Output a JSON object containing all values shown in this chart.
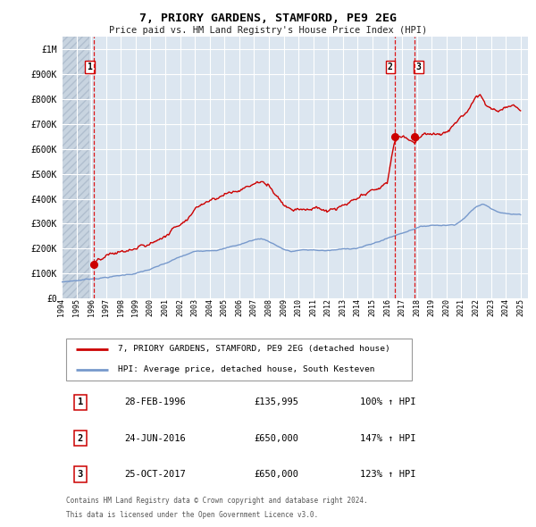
{
  "title": "7, PRIORY GARDENS, STAMFORD, PE9 2EG",
  "subtitle": "Price paid vs. HM Land Registry's House Price Index (HPI)",
  "red_label": "7, PRIORY GARDENS, STAMFORD, PE9 2EG (detached house)",
  "blue_label": "HPI: Average price, detached house, South Kesteven",
  "transactions": [
    {
      "num": 1,
      "date": "28-FEB-1996",
      "year": 1996.16,
      "price": 135995,
      "pct": "100%",
      "dir": "↑"
    },
    {
      "num": 2,
      "date": "24-JUN-2016",
      "year": 2016.48,
      "price": 650000,
      "pct": "147%",
      "dir": "↑"
    },
    {
      "num": 3,
      "date": "25-OCT-2017",
      "year": 2017.81,
      "price": 650000,
      "pct": "123%",
      "dir": "↑"
    }
  ],
  "vline_color": "#dd0000",
  "red_color": "#cc0000",
  "blue_color": "#7799cc",
  "bg_color": "#ffffff",
  "plot_bg_color": "#dce6f0",
  "grid_color": "#ffffff",
  "ylim": [
    0,
    1050000
  ],
  "xlim": [
    1994.0,
    2025.5
  ],
  "yticks": [
    0,
    100000,
    200000,
    300000,
    400000,
    500000,
    600000,
    700000,
    800000,
    900000,
    1000000
  ],
  "ytick_labels": [
    "£0",
    "£100K",
    "£200K",
    "£300K",
    "£400K",
    "£500K",
    "£600K",
    "£700K",
    "£800K",
    "£900K",
    "£1M"
  ],
  "xticks": [
    1994,
    1995,
    1996,
    1997,
    1998,
    1999,
    2000,
    2001,
    2002,
    2003,
    2004,
    2005,
    2006,
    2007,
    2008,
    2009,
    2010,
    2011,
    2012,
    2013,
    2014,
    2015,
    2016,
    2017,
    2018,
    2019,
    2020,
    2021,
    2022,
    2023,
    2024,
    2025
  ],
  "footer_line1": "Contains HM Land Registry data © Crown copyright and database right 2024.",
  "footer_line2": "This data is licensed under the Open Government Licence v3.0."
}
